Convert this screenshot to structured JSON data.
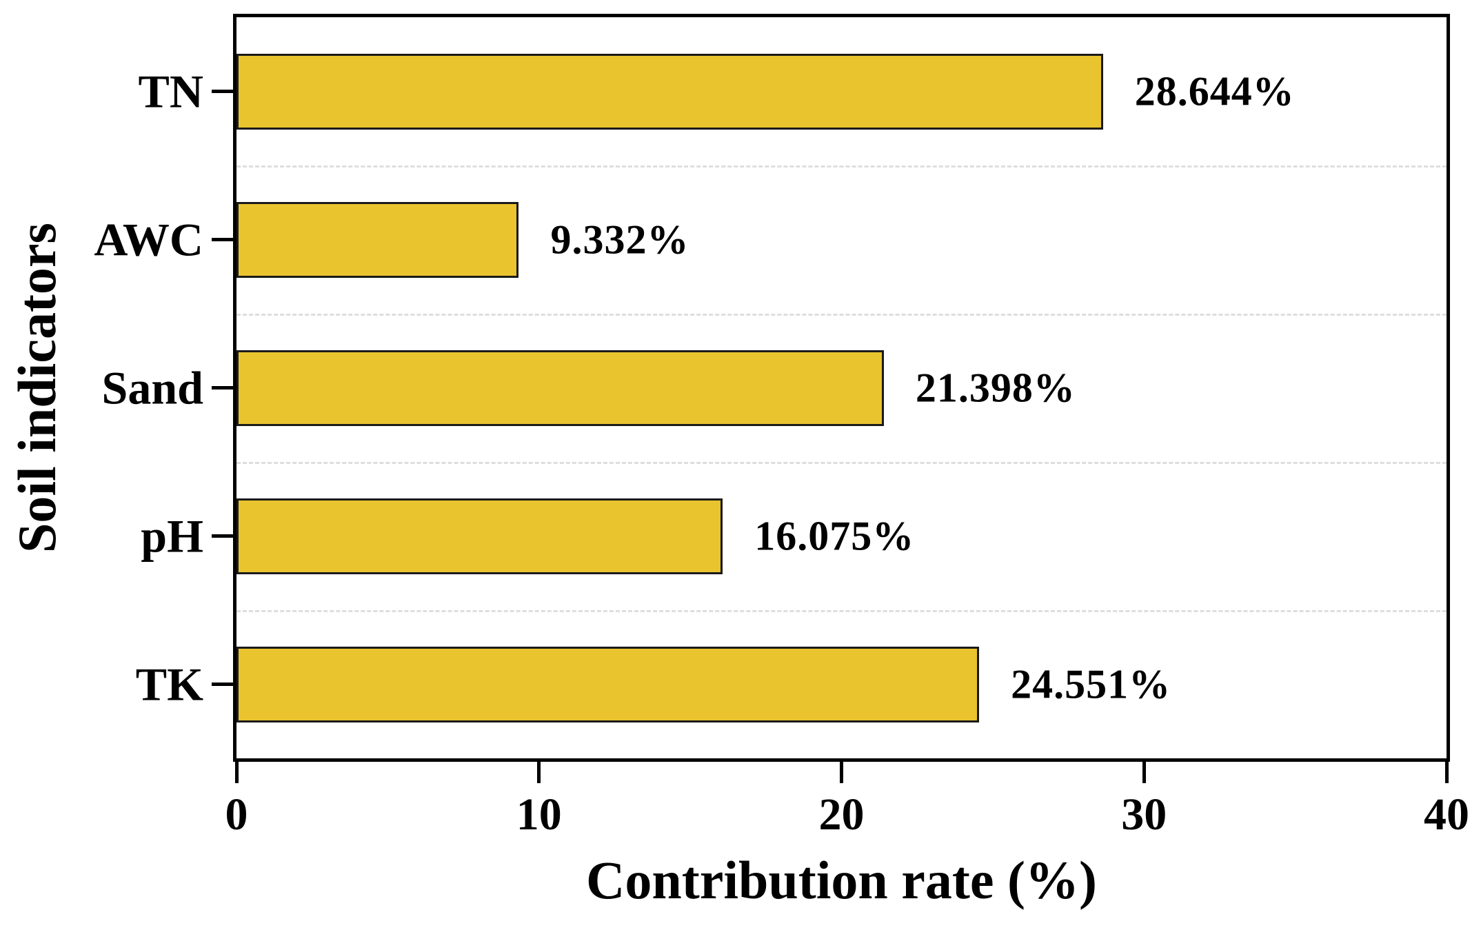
{
  "chart_data": {
    "type": "bar",
    "orientation": "horizontal",
    "xlabel": "Contribution rate (%)",
    "ylabel": "Soil indicators",
    "categories": [
      "TN",
      "AWC",
      "Sand",
      "pH",
      "TK"
    ],
    "values": [
      28.644,
      9.332,
      21.398,
      16.075,
      24.551
    ],
    "value_labels": [
      "28.644%",
      "9.332%",
      "21.398%",
      "16.075%",
      "24.551%"
    ],
    "xlim": [
      0,
      40
    ],
    "x_tick_labels": [
      "0",
      "10",
      "20",
      "30",
      "40"
    ],
    "x_tick_values": [
      0,
      10,
      20,
      30,
      40
    ],
    "bar_color": "#E9C42F",
    "bar_border_color": "#1a1a1a",
    "axis_color": "#000000",
    "gridline_color": "#dedede",
    "gridline_style": "dashed",
    "grid": "horizontal dashed lines between category slots",
    "legend_position": "none"
  }
}
